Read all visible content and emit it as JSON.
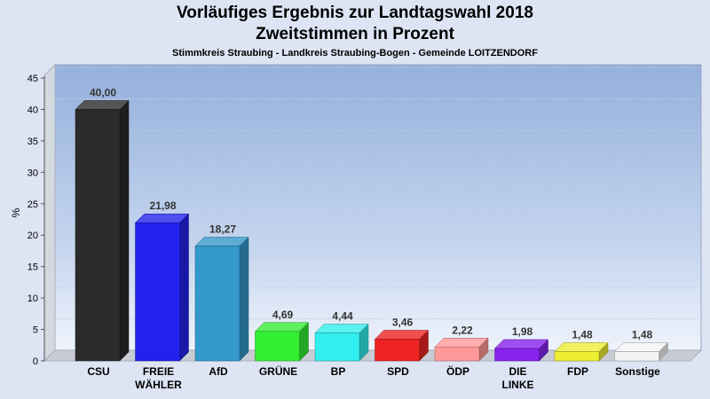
{
  "chart_data": {
    "type": "bar",
    "title": "Vorläufiges Ergebnis zur Landtagswahl 2018",
    "title_line2": "Zweitstimmen in Prozent",
    "subtitle": "Stimmkreis Straubing - Landkreis Straubing-Bogen - Gemeinde LOITZENDORF",
    "ylabel": "%",
    "ylim": [
      0,
      45
    ],
    "yticks": [
      0,
      5,
      10,
      15,
      20,
      25,
      30,
      35,
      40,
      45
    ],
    "grid": true,
    "categories": [
      "CSU",
      "FREIE WÄHLER",
      "AfD",
      "GRÜNE",
      "BP",
      "SPD",
      "ÖDP",
      "DIE LINKE",
      "FDP",
      "Sonstige"
    ],
    "category_lines": [
      [
        "CSU"
      ],
      [
        "FREIE",
        "WÄHLER"
      ],
      [
        "AfD"
      ],
      [
        "GRÜNE"
      ],
      [
        "BP"
      ],
      [
        "SPD"
      ],
      [
        "ÖDP"
      ],
      [
        "DIE",
        "LINKE"
      ],
      [
        "FDP"
      ],
      [
        "Sonstige"
      ]
    ],
    "values": [
      40.0,
      21.98,
      18.27,
      4.69,
      4.44,
      3.46,
      2.22,
      1.98,
      1.48,
      1.48
    ],
    "value_labels": [
      "40,00",
      "21,98",
      "18,27",
      "4,69",
      "4,44",
      "3,46",
      "2,22",
      "1,98",
      "1,48",
      "1,48"
    ],
    "colors": [
      "#2b2b2b",
      "#2222ee",
      "#3399cc",
      "#33ee33",
      "#33eeee",
      "#ee2222",
      "#ff9999",
      "#8822ee",
      "#eeee33",
      "#f4f4f4"
    ]
  }
}
